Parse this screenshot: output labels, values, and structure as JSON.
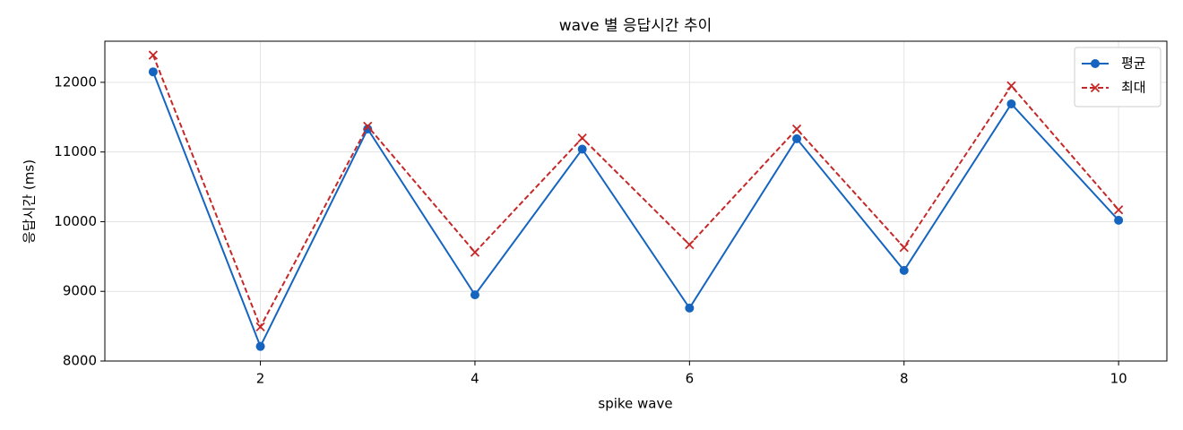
{
  "chart_data": {
    "type": "line",
    "title": "wave 별 응답시간 추이",
    "x_label": "spike wave",
    "y_label": "응답시간 (ms)",
    "x": [
      1,
      2,
      3,
      4,
      5,
      6,
      7,
      8,
      9,
      10
    ],
    "series": [
      {
        "name": "평균",
        "color": "#1565c0",
        "marker": "o",
        "linestyle": "solid",
        "values": [
          12150,
          8210,
          11330,
          8950,
          11040,
          8760,
          11190,
          9300,
          11690,
          10020
        ]
      },
      {
        "name": "최대",
        "color": "#c62828",
        "marker": "x",
        "linestyle": "dashed",
        "values": [
          12390,
          8490,
          11370,
          9560,
          11200,
          9670,
          11330,
          9630,
          11950,
          10170
        ]
      }
    ],
    "xlim": [
      0.55,
      10.45
    ],
    "xticks": [
      2,
      4,
      6,
      8,
      10
    ],
    "ylim": [
      8000,
      12590
    ],
    "yticks": [
      8000,
      9000,
      10000,
      11000,
      12000
    ],
    "grid": true,
    "legend": "upper right"
  }
}
